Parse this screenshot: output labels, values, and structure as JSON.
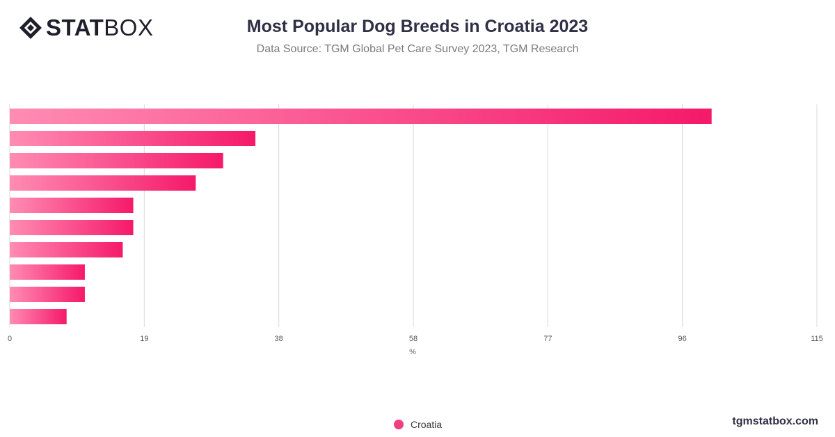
{
  "brand": {
    "logo_bold": "STAT",
    "logo_light": "BOX",
    "logo_icon": "statbox-diamond-icon"
  },
  "header": {
    "title": "Most Popular Dog Breeds in Croatia 2023",
    "subtitle": "Data Source: TGM Global Pet Care Survey 2023, TGM Research"
  },
  "footer": {
    "site": "tgmstatbox.com"
  },
  "colors": {
    "bar_start": "#ff8cb3",
    "bar_end": "#f5196a",
    "grid": "#d9d9d9",
    "legend": "#ee3f7f"
  },
  "chart_data": {
    "type": "bar",
    "orientation": "horizontal",
    "xlabel": "%",
    "xlim": [
      0,
      115
    ],
    "xticks": [
      "0",
      "19",
      "38",
      "58",
      "77",
      "96",
      "115"
    ],
    "grid": true,
    "legend_position": "bottom-center",
    "series": [
      {
        "name": "Croatia",
        "values": [
          100,
          35,
          30.4,
          26.5,
          17.6,
          17.6,
          16.1,
          10.7,
          10.7,
          8.1
        ]
      }
    ]
  }
}
